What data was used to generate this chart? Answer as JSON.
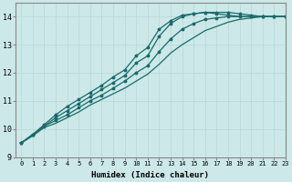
{
  "xlabel": "Humidex (Indice chaleur)",
  "ylabel": "",
  "bg_color": "#cce8e8",
  "line_color": "#1a6b6b",
  "grid_color": "#b8d8d8",
  "xlim": [
    -0.5,
    23
  ],
  "ylim": [
    9,
    14.5
  ],
  "xticks": [
    0,
    1,
    2,
    3,
    4,
    5,
    6,
    7,
    8,
    9,
    10,
    11,
    12,
    13,
    14,
    15,
    16,
    17,
    18,
    19,
    20,
    21,
    22,
    23
  ],
  "yticks": [
    9,
    10,
    11,
    12,
    13,
    14
  ],
  "lines": [
    {
      "x": [
        0,
        1,
        2,
        3,
        4,
        5,
        6,
        7,
        8,
        9,
        10,
        11,
        12,
        13,
        14,
        15,
        16,
        17,
        18,
        19,
        20,
        21,
        22,
        23
      ],
      "y": [
        9.5,
        9.8,
        10.15,
        10.5,
        10.8,
        11.05,
        11.3,
        11.55,
        11.85,
        12.1,
        12.6,
        12.9,
        13.55,
        13.85,
        14.05,
        14.1,
        14.15,
        14.15,
        14.15,
        14.1,
        14.05,
        14.0,
        14.0,
        14.0
      ],
      "marker": "*",
      "linestyle": "-"
    },
    {
      "x": [
        0,
        1,
        2,
        3,
        4,
        5,
        6,
        7,
        8,
        9,
        10,
        11,
        12,
        13,
        14,
        15,
        16,
        17,
        18,
        19,
        20,
        21,
        22,
        23
      ],
      "y": [
        9.5,
        9.8,
        10.1,
        10.4,
        10.65,
        10.9,
        11.15,
        11.4,
        11.65,
        11.9,
        12.35,
        12.6,
        13.3,
        13.75,
        14.0,
        14.1,
        14.15,
        14.1,
        14.05,
        14.0,
        14.0,
        14.0,
        14.0,
        14.0
      ],
      "marker": "*",
      "linestyle": "-"
    },
    {
      "x": [
        0,
        1,
        2,
        3,
        4,
        5,
        6,
        7,
        8,
        9,
        10,
        11,
        12,
        13,
        14,
        15,
        16,
        17,
        18,
        19,
        20,
        21,
        22,
        23
      ],
      "y": [
        9.5,
        9.8,
        10.1,
        10.3,
        10.5,
        10.75,
        11.0,
        11.2,
        11.45,
        11.7,
        12.0,
        12.25,
        12.75,
        13.2,
        13.55,
        13.75,
        13.9,
        13.95,
        14.0,
        14.0,
        14.0,
        14.0,
        14.0,
        14.0
      ],
      "marker": "*",
      "linestyle": "-"
    },
    {
      "x": [
        0,
        1,
        2,
        3,
        4,
        5,
        6,
        7,
        8,
        9,
        10,
        11,
        12,
        13,
        14,
        15,
        16,
        17,
        18,
        19,
        20,
        21,
        22,
        23
      ],
      "y": [
        9.5,
        9.75,
        10.05,
        10.2,
        10.4,
        10.6,
        10.85,
        11.05,
        11.25,
        11.45,
        11.7,
        11.95,
        12.3,
        12.7,
        13.0,
        13.25,
        13.5,
        13.65,
        13.8,
        13.9,
        13.95,
        14.0,
        14.0,
        14.0
      ],
      "marker": null,
      "linestyle": "-"
    }
  ]
}
